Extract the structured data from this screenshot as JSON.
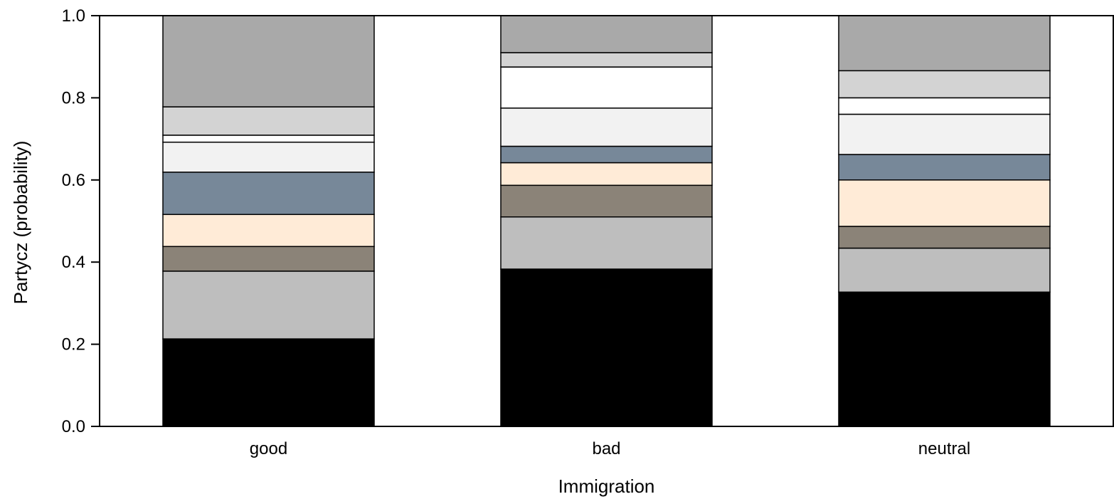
{
  "chart_data": {
    "type": "bar",
    "stacked": true,
    "title": "",
    "xlabel": "Immigration",
    "ylabel": "Partycz (probability)",
    "ylim": [
      0,
      1
    ],
    "yticks": [
      "0.0",
      "0.2",
      "0.4",
      "0.6",
      "0.8",
      "1.0"
    ],
    "categories": [
      "good",
      "bad",
      "neutral"
    ],
    "grid": false,
    "legend": "none",
    "series": [
      {
        "color": "#000000",
        "values": [
          0.213,
          0.383,
          0.327
        ]
      },
      {
        "color": "#bebebe",
        "values": [
          0.165,
          0.127,
          0.107
        ]
      },
      {
        "color": "#8b8378",
        "values": [
          0.06,
          0.077,
          0.053
        ]
      },
      {
        "color": "#ffebd7",
        "values": [
          0.078,
          0.055,
          0.113
        ]
      },
      {
        "color": "#778899",
        "values": [
          0.103,
          0.04,
          0.062
        ]
      },
      {
        "color": "#f2f2f2",
        "values": [
          0.073,
          0.093,
          0.098
        ]
      },
      {
        "color": "#ffffff",
        "values": [
          0.017,
          0.1,
          0.04
        ]
      },
      {
        "color": "#d3d3d3",
        "values": [
          0.069,
          0.035,
          0.066
        ]
      },
      {
        "color": "#a9a9a9",
        "values": [
          0.222,
          0.09,
          0.134
        ]
      }
    ]
  }
}
